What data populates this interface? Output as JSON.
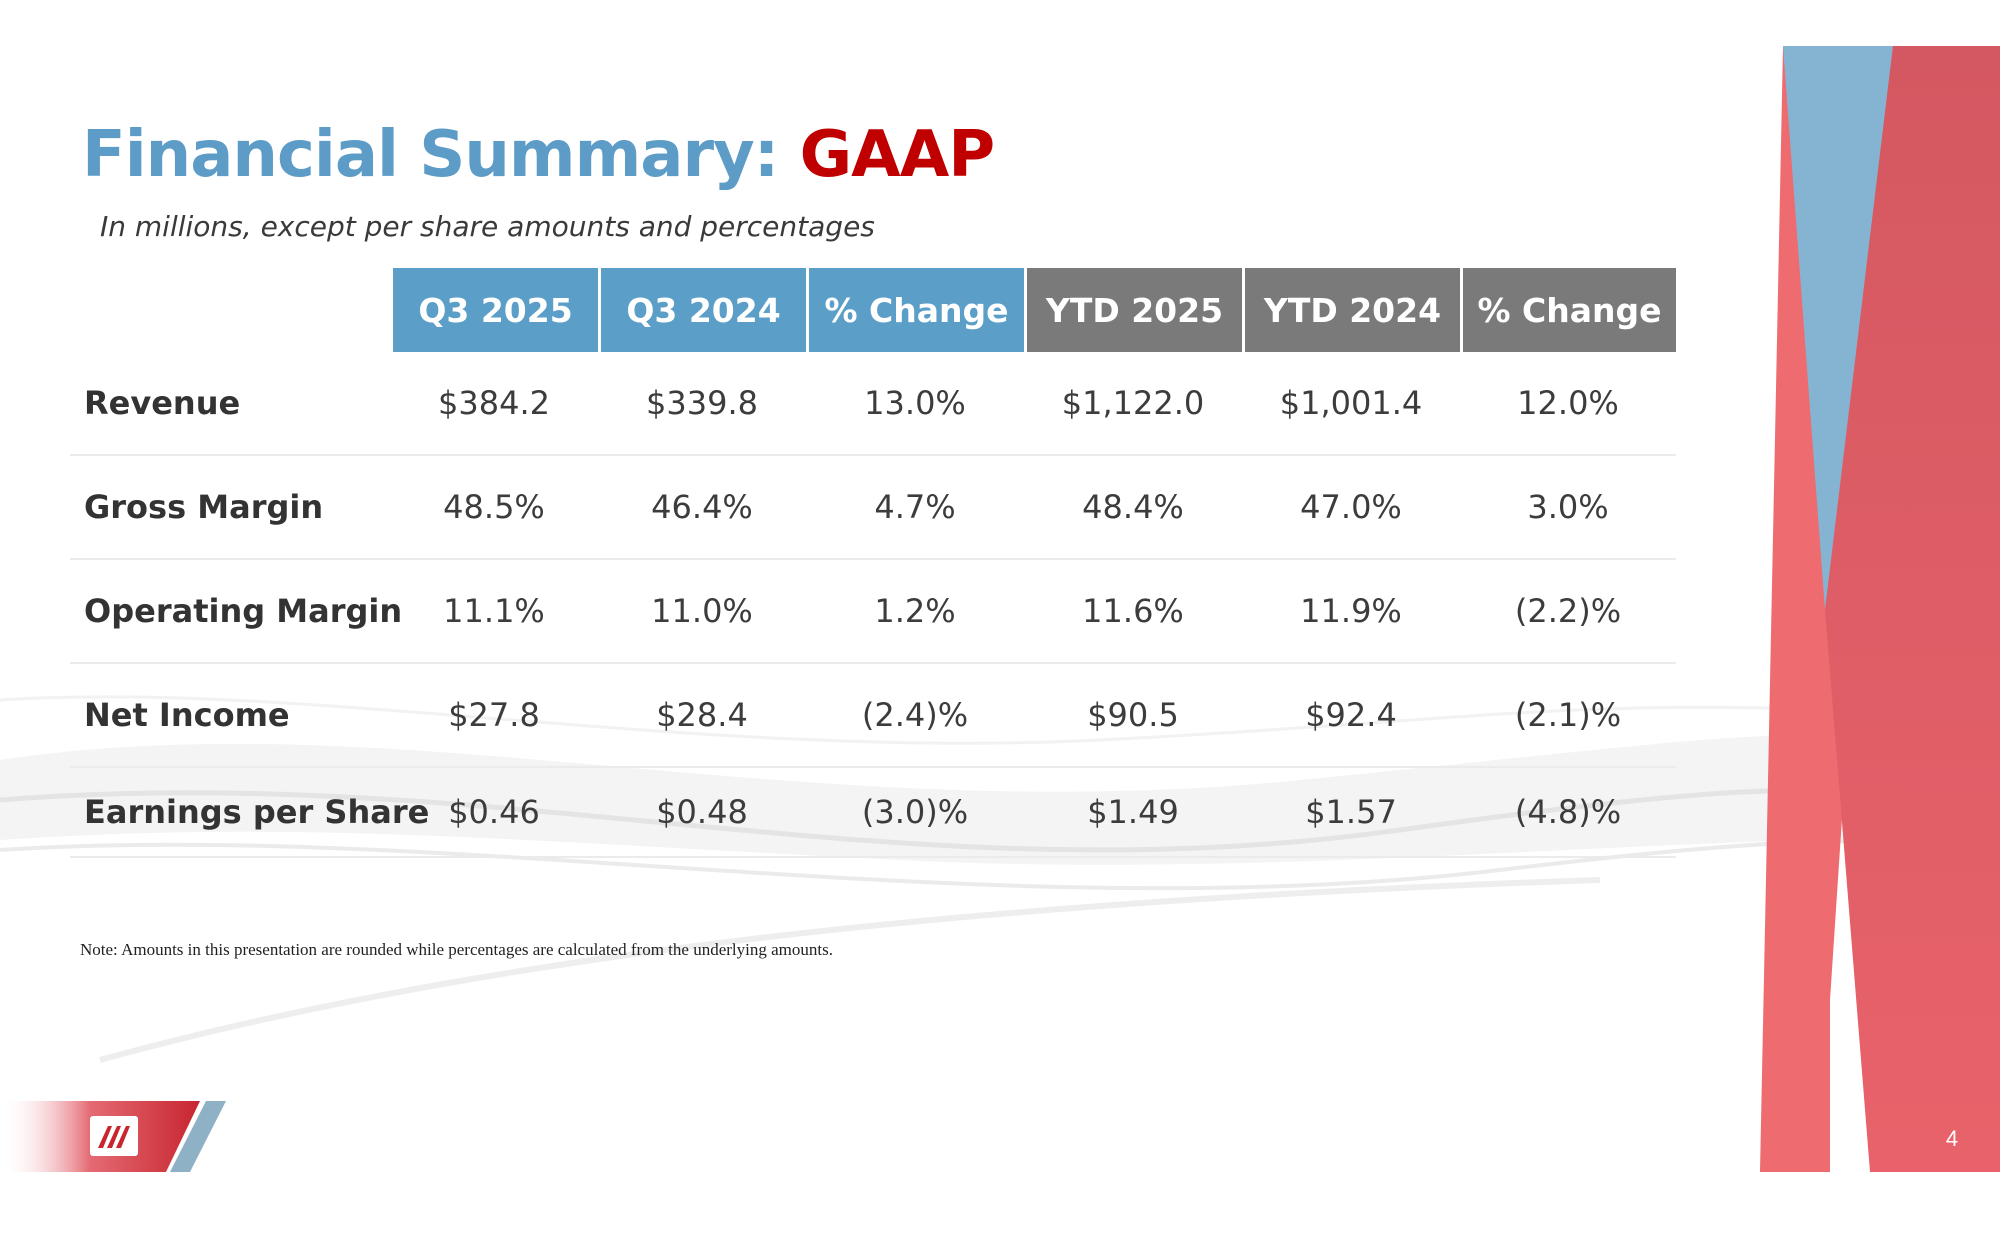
{
  "title": {
    "part1": "Financial Summary:",
    "part2": "GAAP"
  },
  "subtitle": "In millions, except per share amounts and percentages",
  "table": {
    "headers": [
      "Q3 2025",
      "Q3 2024",
      "% Change",
      "YTD 2025",
      "YTD 2024",
      "% Change"
    ],
    "rows": [
      {
        "label": "Revenue",
        "values": [
          "$384.2",
          "$339.8",
          "13.0%",
          "$1,122.0",
          "$1,001.4",
          "12.0%"
        ]
      },
      {
        "label": "Gross Margin",
        "values": [
          "48.5%",
          "46.4%",
          "4.7%",
          "48.4%",
          "47.0%",
          "3.0%"
        ]
      },
      {
        "label": "Operating Margin",
        "values": [
          "11.1%",
          "11.0%",
          "1.2%",
          "11.6%",
          "11.9%",
          "(2.2)%"
        ]
      },
      {
        "label": "Net Income",
        "values": [
          "$27.8",
          "$28.4",
          "(2.4)%",
          "$90.5",
          "$92.4",
          "(2.1)%"
        ]
      },
      {
        "label": "Earnings per Share",
        "values": [
          "$0.46",
          "$0.48",
          "(3.0)%",
          "$1.49",
          "$1.57",
          "(4.8)%"
        ]
      }
    ]
  },
  "note": "Note: Amounts in this presentation are rounded while percentages are calculated from the underlying amounts.",
  "page_number": "4",
  "colors": {
    "title_blue": "#5c9cc7",
    "title_red": "#c00000",
    "header_blue": "#5b9ec8",
    "header_gray": "#7a7a7a",
    "accent_red": "#d9525e",
    "accent_blue": "#82b4d4"
  },
  "icons": {
    "logo": "company-logo-icon"
  }
}
